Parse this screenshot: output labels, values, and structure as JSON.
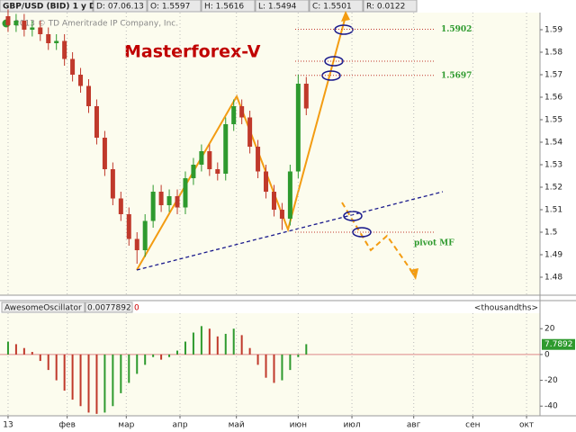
{
  "chart_data": {
    "type": "candlestick",
    "toolbar": [
      "GBP/USD (BID) 1 y D",
      "D: 07.06.13",
      "O: 1.5597",
      "H: 1.5616",
      "L: 1.5494",
      "C: 1.5501",
      "R: 0.0122"
    ],
    "copyright": "2013 © TD Ameritrade IP Company, Inc.",
    "title": "Masterforex-V",
    "levels": [
      1.5902,
      1.5697
    ],
    "pivot_label": "pivot MF",
    "up_color": "#2e9a2e",
    "down_color": "#c0392b",
    "grid": true,
    "xlim": [
      -3,
      198
    ],
    "xticks": [
      {
        "value": 0,
        "label": "13"
      },
      {
        "value": 22,
        "label": "фев"
      },
      {
        "value": 44,
        "label": "мар"
      },
      {
        "value": 64,
        "label": "апр"
      },
      {
        "value": 85,
        "label": "май"
      },
      {
        "value": 108,
        "label": "июн"
      },
      {
        "value": 128,
        "label": "июл"
      },
      {
        "value": 151,
        "label": "авг"
      },
      {
        "value": 173,
        "label": "сен"
      },
      {
        "value": 193,
        "label": "окт"
      }
    ],
    "ylim": [
      1.472,
      1.5976
    ],
    "yticks": [
      1.48,
      1.49,
      1.5,
      1.51,
      1.52,
      1.53,
      1.54,
      1.55,
      1.56,
      1.57,
      1.58,
      1.59
    ],
    "candles": {
      "x": [
        0,
        3,
        6,
        9,
        12,
        15,
        18,
        21,
        24,
        27,
        30,
        33,
        36,
        39,
        42,
        45,
        48,
        51,
        54,
        57,
        60,
        63,
        66,
        69,
        72,
        75,
        78,
        81,
        84,
        87,
        90,
        93,
        96,
        99,
        102,
        105,
        108,
        111
      ],
      "open": [
        1.596,
        1.592,
        1.594,
        1.59,
        1.591,
        1.588,
        1.584,
        1.585,
        1.577,
        1.57,
        1.565,
        1.556,
        1.542,
        1.528,
        1.515,
        1.508,
        1.497,
        1.492,
        1.505,
        1.518,
        1.512,
        1.516,
        1.511,
        1.524,
        1.53,
        1.536,
        1.528,
        1.526,
        1.548,
        1.556,
        1.551,
        1.538,
        1.527,
        1.518,
        1.51,
        1.506,
        1.527,
        1.566
      ],
      "high": [
        1.599,
        1.597,
        1.597,
        1.594,
        1.594,
        1.591,
        1.588,
        1.588,
        1.58,
        1.573,
        1.568,
        1.559,
        1.545,
        1.531,
        1.518,
        1.511,
        1.5,
        1.508,
        1.521,
        1.521,
        1.519,
        1.519,
        1.527,
        1.533,
        1.539,
        1.539,
        1.531,
        1.551,
        1.559,
        1.559,
        1.554,
        1.541,
        1.53,
        1.521,
        1.513,
        1.53,
        1.57,
        1.569
      ],
      "low": [
        1.589,
        1.589,
        1.587,
        1.587,
        1.585,
        1.581,
        1.581,
        1.574,
        1.567,
        1.562,
        1.553,
        1.539,
        1.525,
        1.512,
        1.505,
        1.494,
        1.486,
        1.489,
        1.502,
        1.509,
        1.509,
        1.508,
        1.508,
        1.521,
        1.527,
        1.525,
        1.523,
        1.523,
        1.545,
        1.548,
        1.535,
        1.524,
        1.515,
        1.507,
        1.501,
        1.503,
        1.524,
        1.552
      ],
      "close": [
        1.592,
        1.594,
        1.59,
        1.591,
        1.588,
        1.584,
        1.585,
        1.577,
        1.57,
        1.565,
        1.556,
        1.542,
        1.528,
        1.515,
        1.508,
        1.497,
        1.492,
        1.505,
        1.518,
        1.512,
        1.516,
        1.511,
        1.524,
        1.53,
        1.536,
        1.528,
        1.526,
        1.548,
        1.556,
        1.551,
        1.538,
        1.527,
        1.518,
        1.51,
        1.506,
        1.527,
        1.566,
        1.555
      ]
    },
    "oscillator": {
      "name": "AwesomeOscillator",
      "header_value": 0.0077892,
      "flag": 0,
      "units": "<thousandths>",
      "last_value": 7.7892,
      "ylim": [
        -47.5,
        32
      ],
      "yticks": [
        20,
        0,
        -20,
        -40
      ],
      "values": [
        10,
        8,
        5,
        2,
        -5,
        -12,
        -20,
        -28,
        -35,
        -40,
        -45,
        -46,
        -45,
        -40,
        -30,
        -22,
        -15,
        -8,
        -2,
        -4,
        -2,
        3,
        10,
        17,
        22,
        20,
        14,
        16,
        20,
        15,
        5,
        -8,
        -18,
        -22,
        -20,
        -12,
        -2,
        8
      ]
    }
  }
}
